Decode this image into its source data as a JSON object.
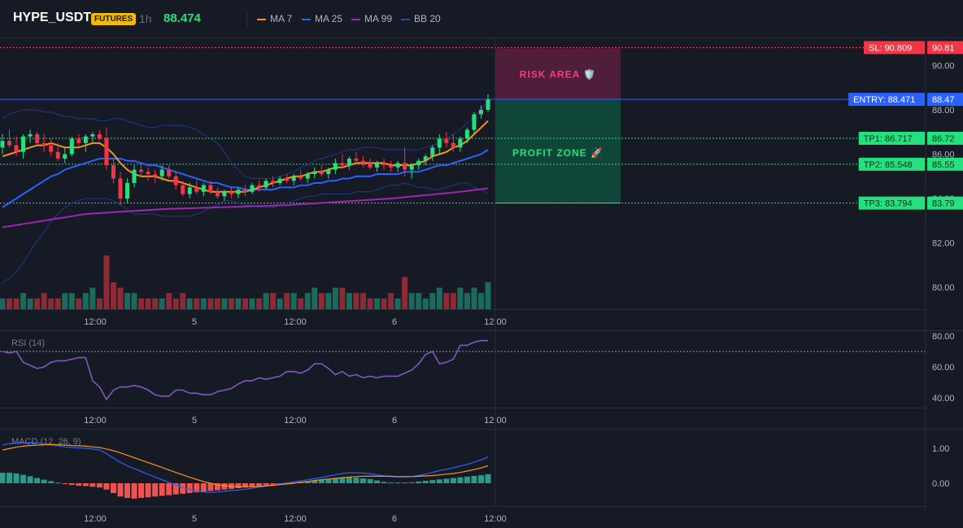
{
  "header": {
    "symbol": "HYPE_USDT",
    "badge": "FUTURES",
    "interval": "1h",
    "price": "88.474",
    "legend": [
      {
        "label": "MA 7",
        "color": "#f7931a"
      },
      {
        "label": "MA 25",
        "color": "#2962ff"
      },
      {
        "label": "MA 99",
        "color": "#9c27b0"
      },
      {
        "label": "BB 20",
        "color": "#1e3a8a"
      }
    ]
  },
  "colors": {
    "up": "#26e07f",
    "down": "#f23645",
    "vol_up": "#1b6b5c",
    "vol_down": "#8c2a36",
    "ma7": "#f7931a",
    "ma25": "#2962ff",
    "ma99": "#9c27b0",
    "bb": "#1e3a8a",
    "rsi": "#7e57c2",
    "macd": "#2962ff",
    "signal": "#f7931a",
    "sl": "#f23645",
    "entry": "#2962ff",
    "tp": "#26e07f",
    "risk_fill": "#5a1f3e",
    "profit_fill": "#0f4f3c"
  },
  "overlay": {
    "risk_label": "RISK AREA 🛡️",
    "profit_label": "PROFIT ZONE 🚀"
  },
  "chart_data": [
    {
      "type": "candlestick",
      "title": "HYPE_USDT 1h",
      "ylim": [
        79.5,
        91.0
      ],
      "y_ticks": [
        "80.00",
        "82.00",
        "84.00",
        "86.00",
        "88.00",
        "90.00"
      ],
      "x_tick_labels": [
        "12:00",
        "5",
        "12:00",
        "6",
        "12:00"
      ],
      "grid": false,
      "ohlc": [
        [
          86.3,
          86.9,
          86.0,
          86.6
        ],
        [
          86.6,
          87.1,
          86.3,
          86.4
        ],
        [
          86.4,
          86.8,
          85.9,
          86.1
        ],
        [
          86.1,
          86.9,
          85.8,
          86.8
        ],
        [
          86.8,
          87.1,
          86.5,
          86.9
        ],
        [
          86.9,
          87.0,
          86.4,
          86.5
        ],
        [
          86.5,
          86.9,
          86.1,
          86.4
        ],
        [
          86.4,
          86.7,
          85.9,
          86.1
        ],
        [
          86.1,
          86.5,
          85.7,
          85.8
        ],
        [
          85.8,
          86.3,
          85.6,
          86.0
        ],
        [
          86.0,
          86.8,
          85.9,
          86.7
        ],
        [
          86.7,
          86.9,
          86.3,
          86.5
        ],
        [
          86.5,
          86.9,
          86.1,
          86.8
        ],
        [
          86.8,
          87.0,
          86.5,
          86.9
        ],
        [
          86.9,
          87.1,
          86.6,
          86.7
        ],
        [
          86.7,
          87.2,
          85.3,
          85.5
        ],
        [
          85.5,
          85.8,
          84.7,
          84.9
        ],
        [
          84.9,
          85.2,
          83.7,
          84.0
        ],
        [
          84.0,
          84.9,
          83.8,
          84.7
        ],
        [
          84.7,
          85.5,
          84.5,
          85.3
        ],
        [
          85.3,
          85.6,
          85.0,
          85.2
        ],
        [
          85.2,
          85.4,
          84.8,
          85.1
        ],
        [
          85.1,
          85.3,
          84.7,
          85.0
        ],
        [
          85.0,
          85.5,
          84.8,
          85.3
        ],
        [
          85.3,
          85.5,
          84.9,
          85.0
        ],
        [
          85.0,
          85.2,
          84.4,
          84.6
        ],
        [
          84.6,
          84.8,
          84.1,
          84.2
        ],
        [
          84.2,
          84.7,
          84.0,
          84.5
        ],
        [
          84.5,
          84.8,
          84.2,
          84.3
        ],
        [
          84.3,
          84.7,
          84.1,
          84.6
        ],
        [
          84.6,
          84.8,
          84.2,
          84.3
        ],
        [
          84.3,
          84.5,
          84.0,
          84.1
        ],
        [
          84.1,
          84.4,
          83.9,
          84.3
        ],
        [
          84.3,
          84.5,
          84.0,
          84.2
        ],
        [
          84.2,
          84.5,
          84.0,
          84.4
        ],
        [
          84.4,
          84.6,
          84.1,
          84.3
        ],
        [
          84.3,
          84.7,
          84.2,
          84.6
        ],
        [
          84.6,
          84.8,
          84.3,
          84.5
        ],
        [
          84.5,
          84.9,
          84.4,
          84.8
        ],
        [
          84.8,
          85.0,
          84.5,
          84.7
        ],
        [
          84.7,
          85.0,
          84.6,
          84.9
        ],
        [
          84.9,
          85.1,
          84.7,
          84.8
        ],
        [
          84.8,
          85.1,
          84.6,
          85.0
        ],
        [
          85.0,
          85.3,
          84.8,
          84.9
        ],
        [
          84.9,
          85.2,
          84.7,
          85.1
        ],
        [
          85.1,
          85.4,
          84.9,
          85.2
        ],
        [
          85.2,
          85.5,
          85.0,
          85.1
        ],
        [
          85.1,
          85.4,
          84.9,
          85.3
        ],
        [
          85.3,
          85.8,
          85.1,
          85.6
        ],
        [
          85.6,
          86.0,
          85.4,
          85.5
        ],
        [
          85.5,
          85.9,
          85.3,
          85.8
        ],
        [
          85.8,
          86.1,
          85.6,
          85.7
        ],
        [
          85.7,
          85.9,
          85.4,
          85.6
        ],
        [
          85.6,
          85.8,
          85.3,
          85.4
        ],
        [
          85.4,
          85.7,
          85.2,
          85.6
        ],
        [
          85.6,
          85.8,
          85.3,
          85.5
        ],
        [
          85.5,
          85.7,
          85.2,
          85.4
        ],
        [
          85.4,
          85.7,
          85.2,
          85.6
        ],
        [
          85.6,
          86.3,
          85.0,
          85.3
        ],
        [
          85.3,
          85.6,
          84.9,
          85.5
        ],
        [
          85.5,
          85.8,
          85.3,
          85.7
        ],
        [
          85.7,
          86.0,
          85.5,
          85.9
        ],
        [
          85.9,
          86.4,
          85.7,
          86.3
        ],
        [
          86.3,
          86.9,
          86.0,
          86.7
        ],
        [
          86.7,
          87.0,
          86.3,
          86.5
        ],
        [
          86.5,
          86.9,
          86.1,
          86.3
        ],
        [
          86.3,
          86.8,
          86.1,
          86.7
        ],
        [
          86.7,
          87.2,
          86.5,
          87.1
        ],
        [
          87.1,
          87.9,
          86.9,
          87.8
        ],
        [
          87.8,
          88.2,
          87.6,
          88.0
        ],
        [
          88.0,
          88.7,
          87.9,
          88.47
        ]
      ],
      "volume": [
        2,
        2,
        2,
        3,
        2,
        2,
        3,
        2,
        2,
        3,
        3,
        2,
        3,
        4,
        2,
        10,
        5,
        4,
        3,
        3,
        2,
        2,
        2,
        2,
        3,
        2,
        3,
        2,
        2,
        2,
        2,
        2,
        2,
        2,
        2,
        2,
        2,
        2,
        3,
        3,
        2,
        3,
        3,
        2,
        3,
        4,
        3,
        3,
        4,
        4,
        3,
        3,
        3,
        2,
        2,
        2,
        3,
        2,
        6,
        3,
        3,
        2,
        3,
        4,
        3,
        3,
        4,
        3,
        4,
        3,
        5
      ],
      "ma7": [
        85.9,
        86.0,
        86.1,
        86.2,
        86.3,
        86.4,
        86.4,
        86.5,
        86.4,
        86.3,
        86.3,
        86.3,
        86.4,
        86.5,
        86.5,
        86.3,
        86.0,
        85.6,
        85.3,
        85.1,
        85.0,
        85.0,
        85.0,
        84.9,
        84.8,
        84.8,
        84.7,
        84.6,
        84.5,
        84.4,
        84.3,
        84.3,
        84.3,
        84.3,
        84.3,
        84.3,
        84.4,
        84.5,
        84.6,
        84.7,
        84.8,
        84.9,
        85.0,
        85.0,
        85.1,
        85.2,
        85.2,
        85.3,
        85.4,
        85.4,
        85.5,
        85.6,
        85.6,
        85.6,
        85.6,
        85.6,
        85.5,
        85.5,
        85.5,
        85.5,
        85.6,
        85.7,
        85.9,
        86.0,
        86.1,
        86.3,
        86.4,
        86.6,
        86.9,
        87.2,
        87.5
      ],
      "ma25": [
        83.6,
        83.8,
        84.0,
        84.2,
        84.4,
        84.6,
        84.8,
        85.0,
        85.1,
        85.3,
        85.4,
        85.5,
        85.6,
        85.7,
        85.8,
        85.8,
        85.8,
        85.8,
        85.7,
        85.7,
        85.6,
        85.5,
        85.5,
        85.4,
        85.3,
        85.2,
        85.1,
        85.0,
        84.9,
        84.8,
        84.7,
        84.7,
        84.6,
        84.5,
        84.5,
        84.4,
        84.4,
        84.4,
        84.4,
        84.4,
        84.5,
        84.5,
        84.5,
        84.6,
        84.6,
        84.7,
        84.7,
        84.8,
        84.8,
        84.9,
        84.9,
        85.0,
        85.0,
        85.0,
        85.1,
        85.1,
        85.1,
        85.1,
        85.2,
        85.2,
        85.2,
        85.3,
        85.4,
        85.5,
        85.5,
        85.6,
        85.7,
        85.8,
        85.9,
        86.0,
        86.2
      ],
      "ma99": [
        82.7,
        82.75,
        82.8,
        82.85,
        82.9,
        82.95,
        83.0,
        83.05,
        83.1,
        83.15,
        83.2,
        83.25,
        83.3,
        83.32,
        83.34,
        83.36,
        83.38,
        83.4,
        83.42,
        83.44,
        83.46,
        83.48,
        83.5,
        83.52,
        83.53,
        83.54,
        83.55,
        83.56,
        83.57,
        83.58,
        83.59,
        83.6,
        83.61,
        83.62,
        83.63,
        83.64,
        83.65,
        83.66,
        83.67,
        83.68,
        83.69,
        83.7,
        83.72,
        83.74,
        83.76,
        83.78,
        83.8,
        83.82,
        83.84,
        83.86,
        83.88,
        83.9,
        83.92,
        83.94,
        83.96,
        83.98,
        84.0,
        84.03,
        84.06,
        84.09,
        84.12,
        84.15,
        84.18,
        84.21,
        84.24,
        84.27,
        84.3,
        84.34,
        84.38,
        84.42,
        84.46
      ],
      "bb_upper": [
        87.6,
        87.8,
        87.9,
        88.0,
        88.0,
        88.0,
        87.9,
        87.9,
        87.8,
        87.7,
        87.7,
        87.6,
        87.6,
        87.6,
        87.5,
        87.5,
        87.6,
        87.6,
        87.5,
        87.4,
        87.3,
        87.2,
        87.2,
        87.3,
        87.3,
        87.3,
        87.3,
        87.2,
        87.1,
        86.9,
        86.7,
        86.5,
        86.1,
        85.6,
        85.3,
        85.0,
        84.9,
        84.9,
        84.9,
        84.9,
        85.0,
        85.1,
        85.2,
        85.4,
        85.5,
        85.7,
        85.8,
        85.9,
        86.0,
        86.1,
        86.2,
        86.2,
        86.3,
        86.3,
        86.3,
        86.2,
        86.2,
        86.2,
        86.2,
        86.2,
        86.2,
        86.3,
        86.4,
        86.5,
        86.7,
        86.9,
        87.1,
        87.4,
        87.7,
        88.0,
        88.4
      ],
      "bb_lower": [
        80.2,
        80.4,
        80.7,
        81.1,
        81.6,
        82.1,
        82.5,
        83.0,
        83.3,
        83.6,
        83.8,
        83.9,
        84.0,
        84.0,
        84.0,
        84.0,
        83.9,
        83.7,
        83.5,
        83.3,
        83.3,
        83.3,
        83.3,
        83.2,
        83.2,
        83.2,
        83.2,
        83.2,
        83.3,
        83.4,
        83.6,
        83.7,
        83.9,
        83.9,
        83.8,
        83.7,
        83.7,
        83.6,
        83.6,
        83.6,
        83.7,
        83.8,
        83.9,
        84.0,
        84.1,
        84.1,
        84.2,
        84.2,
        84.2,
        84.2,
        84.2,
        84.3,
        84.3,
        84.3,
        84.4,
        84.5,
        84.6,
        84.6,
        84.7,
        84.6,
        84.5,
        84.5,
        84.4,
        84.4,
        84.5,
        84.6,
        84.7,
        84.7,
        84.5,
        84.4,
        84.2
      ],
      "levels": [
        {
          "label": "SL: 90.809",
          "value": 90.809,
          "axis": "90.81",
          "kind": "sl"
        },
        {
          "label": "ENTRY: 88.471",
          "value": 88.471,
          "axis": "88.47",
          "kind": "entry"
        },
        {
          "label": "TP1: 86.717",
          "value": 86.717,
          "axis": "86.72",
          "kind": "tp"
        },
        {
          "label": "TP2: 85.548",
          "value": 85.548,
          "axis": "85.55",
          "kind": "tp"
        },
        {
          "label": "TP3: 83.794",
          "value": 83.794,
          "axis": "83.79",
          "kind": "tp"
        }
      ]
    },
    {
      "type": "line",
      "title": "RSI (14)",
      "ylim": [
        35,
        82
      ],
      "y_ticks": [
        "40.00",
        "60.00",
        "80.00"
      ],
      "overbought": 70,
      "values": [
        70,
        69,
        70,
        63,
        61,
        59,
        60,
        63,
        64,
        64,
        65,
        66,
        66,
        51,
        47,
        39,
        45,
        47,
        47,
        48,
        47,
        45,
        42,
        41,
        41,
        45,
        45,
        43,
        43,
        42,
        42,
        44,
        45,
        46,
        49,
        51,
        51,
        53,
        52,
        53,
        54,
        57,
        57,
        56,
        58,
        62,
        62,
        59,
        55,
        57,
        54,
        55,
        53,
        54,
        53,
        54,
        54,
        54,
        56,
        58,
        62,
        68,
        70,
        62,
        63,
        65,
        74,
        74,
        76,
        77,
        77
      ]
    },
    {
      "type": "bar",
      "title": "MACD (12, 26, 9)",
      "ylim": [
        -0.65,
        1.3
      ],
      "y_ticks": [
        "0.00",
        "1.00"
      ],
      "histogram": [
        0.3,
        0.3,
        0.28,
        0.24,
        0.2,
        0.15,
        0.1,
        0.06,
        0.02,
        -0.02,
        -0.05,
        -0.07,
        -0.08,
        -0.1,
        -0.12,
        -0.18,
        -0.28,
        -0.38,
        -0.42,
        -0.44,
        -0.42,
        -0.4,
        -0.38,
        -0.36,
        -0.34,
        -0.32,
        -0.3,
        -0.28,
        -0.26,
        -0.24,
        -0.22,
        -0.2,
        -0.18,
        -0.16,
        -0.14,
        -0.12,
        -0.1,
        -0.08,
        -0.06,
        -0.04,
        -0.02,
        0.0,
        0.02,
        0.04,
        0.06,
        0.08,
        0.1,
        0.12,
        0.14,
        0.16,
        0.17,
        0.16,
        0.14,
        0.12,
        0.08,
        0.04,
        0.02,
        0.02,
        0.02,
        0.03,
        0.05,
        0.07,
        0.09,
        0.11,
        0.13,
        0.15,
        0.17,
        0.19,
        0.21,
        0.23,
        0.26
      ],
      "macd": [
        1.1,
        1.13,
        1.15,
        1.16,
        1.16,
        1.15,
        1.13,
        1.1,
        1.07,
        1.04,
        1.02,
        1.01,
        1.0,
        0.98,
        0.95,
        0.85,
        0.72,
        0.6,
        0.5,
        0.42,
        0.34,
        0.26,
        0.18,
        0.1,
        0.02,
        -0.05,
        -0.12,
        -0.18,
        -0.22,
        -0.25,
        -0.26,
        -0.25,
        -0.23,
        -0.21,
        -0.19,
        -0.17,
        -0.14,
        -0.11,
        -0.08,
        -0.05,
        -0.02,
        0.01,
        0.04,
        0.07,
        0.1,
        0.13,
        0.16,
        0.2,
        0.24,
        0.28,
        0.3,
        0.3,
        0.29,
        0.27,
        0.24,
        0.21,
        0.19,
        0.18,
        0.18,
        0.19,
        0.22,
        0.26,
        0.31,
        0.36,
        0.4,
        0.44,
        0.49,
        0.54,
        0.6,
        0.67,
        0.75
      ],
      "signal": [
        0.95,
        0.99,
        1.03,
        1.06,
        1.08,
        1.09,
        1.1,
        1.1,
        1.1,
        1.09,
        1.08,
        1.07,
        1.06,
        1.04,
        1.02,
        0.98,
        0.93,
        0.87,
        0.8,
        0.73,
        0.66,
        0.59,
        0.52,
        0.45,
        0.38,
        0.31,
        0.24,
        0.17,
        0.11,
        0.05,
        0.0,
        -0.04,
        -0.07,
        -0.09,
        -0.1,
        -0.1,
        -0.1,
        -0.09,
        -0.08,
        -0.06,
        -0.04,
        -0.02,
        0.0,
        0.03,
        0.05,
        0.08,
        0.1,
        0.12,
        0.14,
        0.16,
        0.18,
        0.19,
        0.2,
        0.2,
        0.2,
        0.2,
        0.2,
        0.19,
        0.19,
        0.19,
        0.2,
        0.21,
        0.22,
        0.24,
        0.26,
        0.28,
        0.31,
        0.35,
        0.39,
        0.44,
        0.5
      ]
    }
  ]
}
